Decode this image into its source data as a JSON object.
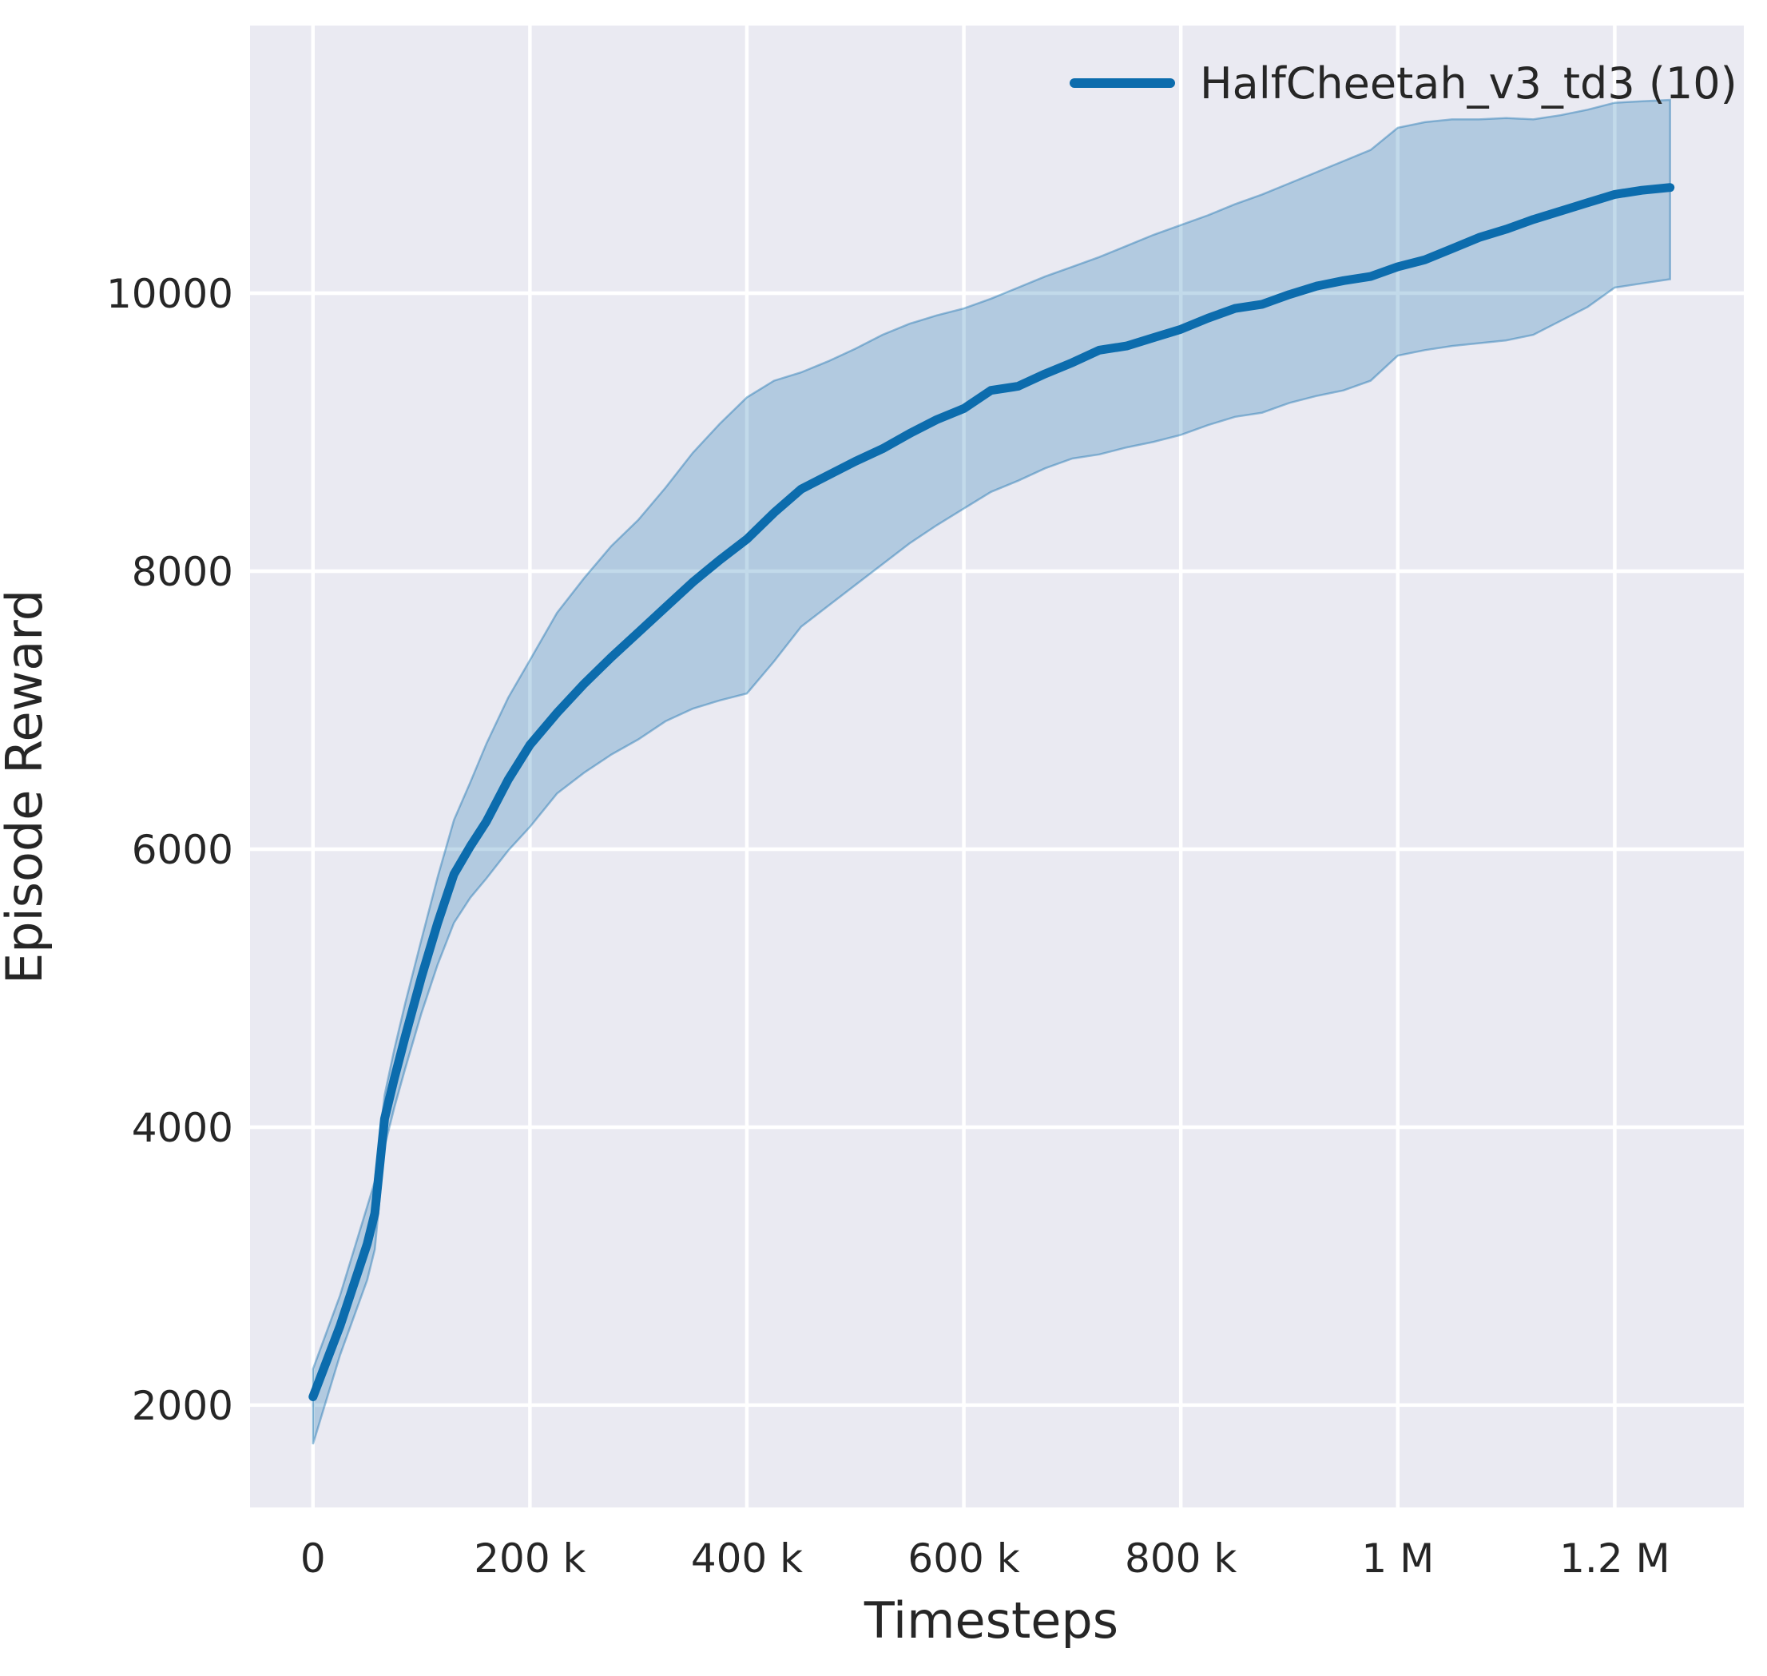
{
  "figure": {
    "background": "#ffffff",
    "plot_background": "#eaeaf2",
    "grid_color": "#ffffff",
    "text_color": "#262626"
  },
  "axes": {
    "xlabel": "Timesteps",
    "ylabel": "Episode Reward"
  },
  "legend": {
    "label": "HalfCheetah_v3_td3 (10)",
    "line_color": "#0c6cad",
    "position": "upper right"
  },
  "chart_data": {
    "type": "line",
    "title": "",
    "xlabel": "Timesteps",
    "ylabel": "Episode Reward",
    "grid": true,
    "legend_position": "upper right",
    "x_unit": "timesteps, stored in thousands",
    "xlim_k": [
      -58,
      1319
    ],
    "ylim": [
      1264,
      11925
    ],
    "x_ticks": [
      {
        "v": 0,
        "label": "0"
      },
      {
        "v": 200,
        "label": "200 k"
      },
      {
        "v": 400,
        "label": "400 k"
      },
      {
        "v": 600,
        "label": "600 k"
      },
      {
        "v": 800,
        "label": "800 k"
      },
      {
        "v": 1000,
        "label": "1 M"
      },
      {
        "v": 1200,
        "label": "1.2 M"
      }
    ],
    "y_ticks": [
      {
        "v": 2000,
        "label": "2000"
      },
      {
        "v": 4000,
        "label": "4000"
      },
      {
        "v": 6000,
        "label": "6000"
      },
      {
        "v": 8000,
        "label": "8000"
      },
      {
        "v": 10000,
        "label": "10000"
      }
    ],
    "series": [
      {
        "name": "HalfCheetah_v3_td3 (10)",
        "color": "#0c6cad",
        "band_alpha": 0.25,
        "points_format": [
          "t_thousands",
          "band_low",
          "mean",
          "band_high"
        ],
        "points": [
          [
            0,
            1720,
            2060,
            2260
          ],
          [
            25,
            2360,
            2570,
            2790
          ],
          [
            50,
            2900,
            3160,
            3430
          ],
          [
            57,
            3120,
            3380,
            3610
          ],
          [
            66,
            3860,
            4060,
            4230
          ],
          [
            75,
            4140,
            4350,
            4560
          ],
          [
            85,
            4420,
            4650,
            4890
          ],
          [
            100,
            4820,
            5080,
            5350
          ],
          [
            115,
            5170,
            5470,
            5800
          ],
          [
            130,
            5470,
            5820,
            6210
          ],
          [
            145,
            5650,
            6020,
            6480
          ],
          [
            160,
            5790,
            6200,
            6760
          ],
          [
            180,
            5990,
            6500,
            7090
          ],
          [
            200,
            6160,
            6750,
            7360
          ],
          [
            225,
            6400,
            6980,
            7700
          ],
          [
            250,
            6550,
            7190,
            7950
          ],
          [
            275,
            6680,
            7380,
            8180
          ],
          [
            300,
            6790,
            7560,
            8370
          ],
          [
            325,
            6920,
            7740,
            8600
          ],
          [
            350,
            7010,
            7920,
            8850
          ],
          [
            375,
            7070,
            8080,
            9060
          ],
          [
            400,
            7120,
            8230,
            9250
          ],
          [
            425,
            7350,
            8420,
            9370
          ],
          [
            450,
            7600,
            8590,
            9430
          ],
          [
            475,
            7750,
            8690,
            9510
          ],
          [
            500,
            7900,
            8790,
            9600
          ],
          [
            525,
            8050,
            8880,
            9700
          ],
          [
            550,
            8200,
            8990,
            9780
          ],
          [
            575,
            8330,
            9090,
            9840
          ],
          [
            600,
            8450,
            9170,
            9890
          ],
          [
            625,
            8570,
            9300,
            9960
          ],
          [
            650,
            8650,
            9330,
            10040
          ],
          [
            675,
            8740,
            9420,
            10120
          ],
          [
            700,
            8810,
            9500,
            10190
          ],
          [
            725,
            8840,
            9590,
            10260
          ],
          [
            750,
            8890,
            9620,
            10340
          ],
          [
            775,
            8930,
            9680,
            10420
          ],
          [
            800,
            8980,
            9740,
            10490
          ],
          [
            825,
            9050,
            9820,
            10560
          ],
          [
            850,
            9110,
            9890,
            10640
          ],
          [
            875,
            9140,
            9920,
            10710
          ],
          [
            900,
            9210,
            9990,
            10790
          ],
          [
            925,
            9260,
            10050,
            10870
          ],
          [
            950,
            9300,
            10090,
            10950
          ],
          [
            975,
            9370,
            10120,
            11030
          ],
          [
            1000,
            9550,
            10190,
            11190
          ],
          [
            1025,
            9590,
            10240,
            11230
          ],
          [
            1050,
            9620,
            10320,
            11250
          ],
          [
            1075,
            9640,
            10400,
            11250
          ],
          [
            1100,
            9660,
            10460,
            11260
          ],
          [
            1125,
            9700,
            10530,
            11250
          ],
          [
            1150,
            9800,
            10590,
            11280
          ],
          [
            1175,
            9900,
            10650,
            11320
          ],
          [
            1200,
            10040,
            10710,
            11370
          ],
          [
            1225,
            10070,
            10740,
            11380
          ],
          [
            1251,
            10100,
            10760,
            11390
          ]
        ]
      }
    ]
  }
}
